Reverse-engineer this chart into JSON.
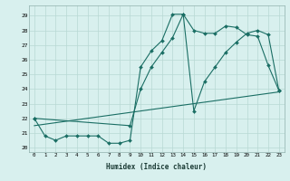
{
  "xlabel": "Humidex (Indice chaleur)",
  "xlim": [
    -0.5,
    23.5
  ],
  "ylim": [
    19.7,
    29.7
  ],
  "yticks": [
    20,
    21,
    22,
    23,
    24,
    25,
    26,
    27,
    28,
    29
  ],
  "xticks": [
    0,
    1,
    2,
    3,
    4,
    5,
    6,
    7,
    8,
    9,
    10,
    11,
    12,
    13,
    14,
    15,
    16,
    17,
    18,
    19,
    20,
    21,
    22,
    23
  ],
  "bg_color": "#d8f0ee",
  "grid_color": "#b8d8d4",
  "line_color": "#1a6e64",
  "line1_x": [
    0,
    1,
    2,
    3,
    4,
    5,
    6,
    7,
    8,
    9,
    10,
    11,
    12,
    13,
    14,
    15,
    16,
    17,
    18,
    19,
    20,
    21,
    22,
    23
  ],
  "line1_y": [
    22.0,
    20.8,
    20.5,
    20.8,
    20.8,
    20.8,
    20.8,
    20.3,
    20.3,
    20.5,
    25.5,
    26.6,
    27.3,
    29.1,
    29.1,
    28.0,
    27.8,
    27.8,
    28.3,
    28.2,
    27.7,
    27.6,
    25.6,
    23.9
  ],
  "line2_x": [
    0,
    9,
    10,
    11,
    12,
    13,
    14,
    15,
    16,
    17,
    18,
    19,
    20,
    21,
    22,
    23
  ],
  "line2_y": [
    22.0,
    21.5,
    24.0,
    25.5,
    26.5,
    27.5,
    29.1,
    22.5,
    24.5,
    25.5,
    26.5,
    27.2,
    27.8,
    28.0,
    27.7,
    23.9
  ],
  "line3_x": [
    0,
    23
  ],
  "line3_y": [
    21.5,
    23.8
  ]
}
